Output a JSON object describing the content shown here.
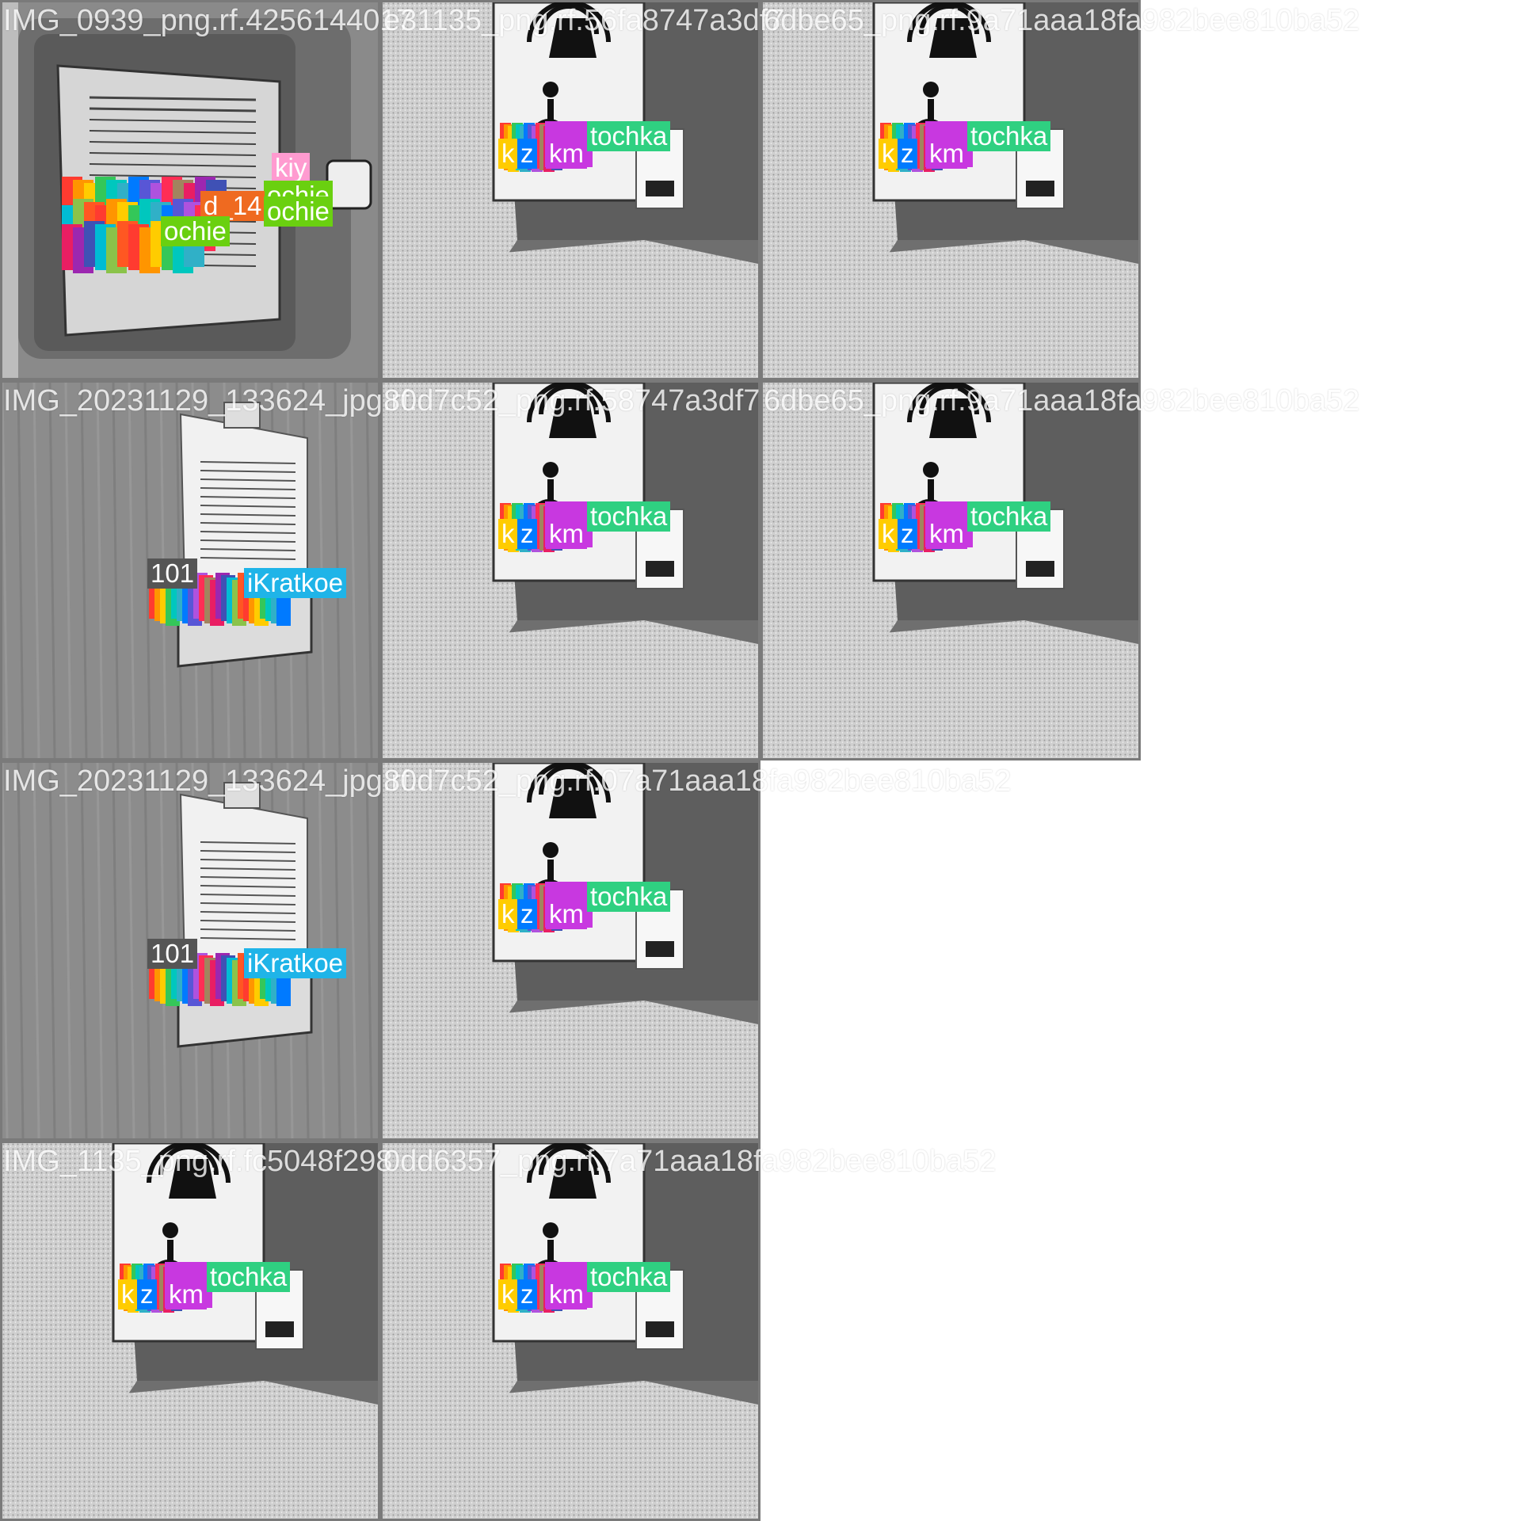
{
  "image_title": "",
  "tiles": [
    {
      "scene": "plaque",
      "caption": "IMG_0939_png.rf.4256144017",
      "labels": [
        "kiy",
        "ochie",
        "d_14",
        "ochie",
        "ochie"
      ]
    },
    {
      "scene": "button",
      "caption": "e31135_png.rf.56fa8747a3df7",
      "labels": [
        "tochka",
        "km",
        "k",
        "z"
      ]
    },
    {
      "scene": "button",
      "caption": "6dbe65_png.rf.9a71aaa18fa982bee810ba52",
      "labels": [
        "tochka",
        "km",
        "k",
        "z"
      ]
    },
    {
      "scene": "sign",
      "caption": "IMG_20231129_133624_jpg.rf.",
      "labels": [
        "iKratkoe",
        "101"
      ]
    },
    {
      "scene": "button",
      "caption": "80d7c52_png.rf.58747a3df7",
      "labels": [
        "tochka",
        "km",
        "k",
        "z"
      ]
    },
    {
      "scene": "button",
      "caption": "6dbe65_png.rf.9a71aaa18fa982bee810ba52",
      "labels": [
        "tochka",
        "km",
        "k",
        "z"
      ]
    },
    {
      "scene": "sign",
      "caption": "IMG_20231129_133624_jpg.rf.",
      "labels": [
        "iKratkoe",
        "101"
      ]
    },
    {
      "scene": "button",
      "caption": "80d7c52_png.rf.07a71aaa18fa982bee810ba52",
      "labels": [
        "tochka",
        "km",
        "k",
        "z"
      ]
    },
    {
      "scene": "button",
      "caption": "IMG_1135_png.rf.fc5048f298",
      "labels": [
        "tochka",
        "km",
        "k",
        "z"
      ]
    },
    {
      "scene": "button",
      "caption": "0dd6357_png.rf.7a71aaa18fa982bee810ba52",
      "labels": [
        "tochka",
        "km",
        "k",
        "z"
      ]
    }
  ],
  "colors": {
    "tochka": "#2fd081",
    "kiy": "#ff9bd0",
    "ochie": "#6ad010",
    "d_14": "#ef6a20",
    "iKratkoe": "#1fb4e8",
    "km": "#c838e0",
    "tile_border": "#7a7a7a"
  }
}
